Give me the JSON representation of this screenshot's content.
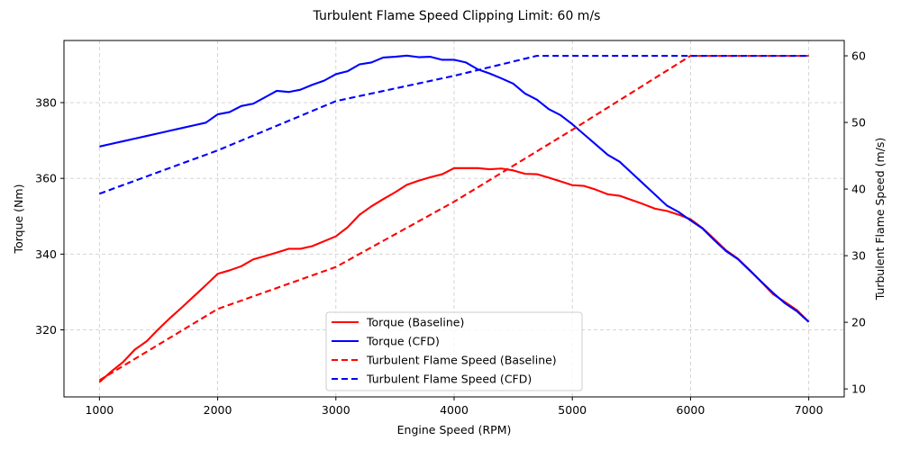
{
  "chart_data": {
    "type": "line",
    "title": "Turbulent Flame Speed Clipping Limit: 60 m/s",
    "xlabel": "Engine Speed (RPM)",
    "ylabel_left": "Torque (Nm)",
    "ylabel_right": "Turbulent Flame Speed (m/s)",
    "xlim": [
      700,
      7300
    ],
    "ylim_left": [
      302.3,
      396.4
    ],
    "ylim_right": [
      8.8,
      62.3
    ],
    "x_ticks": [
      1000,
      2000,
      3000,
      4000,
      5000,
      6000,
      7000
    ],
    "y_ticks_left": [
      320,
      340,
      360,
      380
    ],
    "y_ticks_right": [
      10,
      20,
      30,
      40,
      50,
      60
    ],
    "grid": true,
    "legend_position": "lower-center",
    "series": [
      {
        "name": "Torque (Baseline)",
        "axis": "left",
        "color": "#ff0000",
        "style": "solid",
        "points": [
          [
            1000,
            306.2
          ],
          [
            1100,
            309.0
          ],
          [
            1200,
            311.5
          ],
          [
            1300,
            314.8
          ],
          [
            1400,
            317.0
          ],
          [
            1500,
            320.2
          ],
          [
            1600,
            323.2
          ],
          [
            1700,
            326.0
          ],
          [
            1800,
            328.9
          ],
          [
            1900,
            331.8
          ],
          [
            2000,
            334.8
          ],
          [
            2100,
            335.7
          ],
          [
            2200,
            336.8
          ],
          [
            2300,
            338.6
          ],
          [
            2400,
            339.5
          ],
          [
            2500,
            340.4
          ],
          [
            2600,
            341.4
          ],
          [
            2700,
            341.4
          ],
          [
            2800,
            342.1
          ],
          [
            2900,
            343.4
          ],
          [
            3000,
            344.7
          ],
          [
            3100,
            347.1
          ],
          [
            3200,
            350.4
          ],
          [
            3300,
            352.6
          ],
          [
            3400,
            354.5
          ],
          [
            3500,
            356.3
          ],
          [
            3600,
            358.3
          ],
          [
            3700,
            359.4
          ],
          [
            3800,
            360.3
          ],
          [
            3900,
            361.1
          ],
          [
            4000,
            362.7
          ],
          [
            4100,
            362.7
          ],
          [
            4200,
            362.7
          ],
          [
            4300,
            362.4
          ],
          [
            4400,
            362.6
          ],
          [
            4500,
            362.1
          ],
          [
            4600,
            361.2
          ],
          [
            4700,
            361.1
          ],
          [
            4800,
            360.2
          ],
          [
            4900,
            359.2
          ],
          [
            5000,
            358.2
          ],
          [
            5100,
            358.0
          ],
          [
            5200,
            357.0
          ],
          [
            5300,
            355.8
          ],
          [
            5400,
            355.4
          ],
          [
            5500,
            354.3
          ],
          [
            5600,
            353.2
          ],
          [
            5700,
            352.0
          ],
          [
            5800,
            351.4
          ],
          [
            5900,
            350.4
          ],
          [
            6000,
            349.2
          ],
          [
            6100,
            346.9
          ],
          [
            6200,
            344.0
          ],
          [
            6300,
            341.0
          ],
          [
            6400,
            338.8
          ],
          [
            6500,
            335.8
          ],
          [
            6600,
            332.6
          ],
          [
            6700,
            329.4
          ],
          [
            6800,
            327.3
          ],
          [
            6900,
            325.2
          ],
          [
            7000,
            322.1
          ]
        ]
      },
      {
        "name": "Torque (CFD)",
        "axis": "left",
        "color": "#0000ff",
        "style": "solid",
        "points": [
          [
            1000,
            368.4
          ],
          [
            1100,
            369.1
          ],
          [
            1200,
            369.8
          ],
          [
            1300,
            370.5
          ],
          [
            1400,
            371.2
          ],
          [
            1500,
            371.9
          ],
          [
            1600,
            372.6
          ],
          [
            1700,
            373.3
          ],
          [
            1800,
            374.0
          ],
          [
            1900,
            374.7
          ],
          [
            2000,
            376.9
          ],
          [
            2100,
            377.5
          ],
          [
            2200,
            379.1
          ],
          [
            2300,
            379.7
          ],
          [
            2400,
            381.4
          ],
          [
            2500,
            383.1
          ],
          [
            2600,
            382.8
          ],
          [
            2700,
            383.4
          ],
          [
            2800,
            384.7
          ],
          [
            2900,
            385.8
          ],
          [
            3000,
            387.5
          ],
          [
            3100,
            388.3
          ],
          [
            3200,
            390.1
          ],
          [
            3300,
            390.6
          ],
          [
            3400,
            391.9
          ],
          [
            3500,
            392.1
          ],
          [
            3600,
            392.4
          ],
          [
            3700,
            392.0
          ],
          [
            3800,
            392.1
          ],
          [
            3900,
            391.3
          ],
          [
            4000,
            391.3
          ],
          [
            4100,
            390.6
          ],
          [
            4200,
            388.8
          ],
          [
            4300,
            387.7
          ],
          [
            4400,
            386.4
          ],
          [
            4500,
            385.0
          ],
          [
            4600,
            382.4
          ],
          [
            4700,
            380.8
          ],
          [
            4800,
            378.3
          ],
          [
            4900,
            376.7
          ],
          [
            5000,
            374.3
          ],
          [
            5100,
            371.6
          ],
          [
            5200,
            368.9
          ],
          [
            5300,
            366.2
          ],
          [
            5400,
            364.4
          ],
          [
            5500,
            361.5
          ],
          [
            5600,
            358.6
          ],
          [
            5700,
            355.7
          ],
          [
            5800,
            352.8
          ],
          [
            5900,
            351.1
          ],
          [
            6000,
            348.9
          ],
          [
            6100,
            346.8
          ],
          [
            6200,
            343.7
          ],
          [
            6300,
            340.8
          ],
          [
            6400,
            338.7
          ],
          [
            6500,
            335.7
          ],
          [
            6600,
            332.7
          ],
          [
            6700,
            329.7
          ],
          [
            6800,
            327.0
          ],
          [
            6900,
            324.9
          ],
          [
            7000,
            322.1
          ]
        ]
      },
      {
        "name": "Turbulent Flame Speed (Baseline)",
        "axis": "right",
        "color": "#ff0000",
        "style": "dashed",
        "points": [
          [
            1000,
            11.3
          ],
          [
            2000,
            22.0
          ],
          [
            3000,
            28.3
          ],
          [
            4000,
            38.1
          ],
          [
            5000,
            48.9
          ],
          [
            6000,
            60.0
          ],
          [
            7000,
            60.0
          ]
        ]
      },
      {
        "name": "Turbulent Flame Speed (CFD)",
        "axis": "right",
        "color": "#0000ff",
        "style": "dashed",
        "points": [
          [
            1000,
            39.3
          ],
          [
            2000,
            45.8
          ],
          [
            3000,
            53.2
          ],
          [
            4000,
            57.0
          ],
          [
            4700,
            60.0
          ],
          [
            7000,
            60.0
          ]
        ]
      }
    ]
  }
}
